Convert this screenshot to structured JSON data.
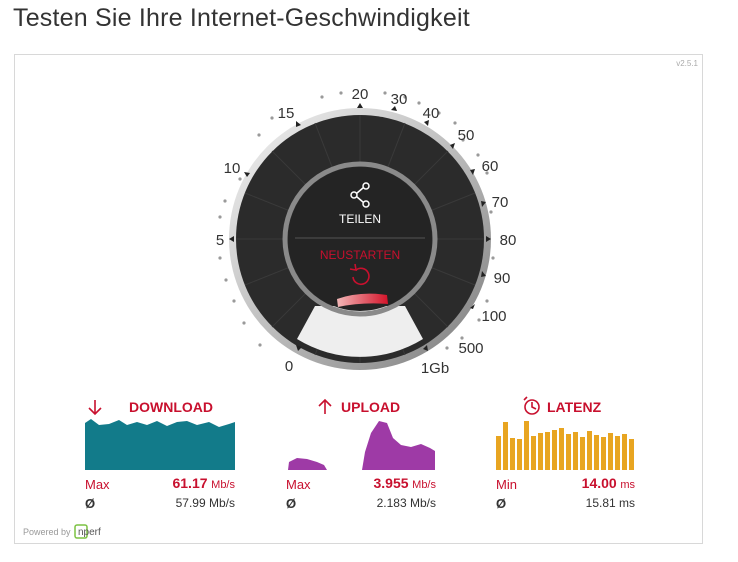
{
  "page": {
    "title": "Testen Sie Ihre Internet-Geschwindigkeit"
  },
  "widget": {
    "version": "v2.5.1"
  },
  "gauge": {
    "scale_labels": [
      "0",
      "5",
      "10",
      "15",
      "20",
      "30",
      "40",
      "50",
      "60",
      "70",
      "80",
      "90",
      "100",
      "500",
      "1Gb"
    ],
    "share_label": "TEILEN",
    "restart_label": "NEUSTARTEN"
  },
  "download": {
    "title": "DOWNLOAD",
    "max_label": "Max",
    "max_value": "61.17",
    "unit": "Mb/s",
    "avg_symbol": "Ø",
    "avg_value": "57.99 Mb/s",
    "color": "#127b8a"
  },
  "upload": {
    "title": "UPLOAD",
    "max_label": "Max",
    "max_value": "3.955",
    "unit": "Mb/s",
    "avg_symbol": "Ø",
    "avg_value": "2.183 Mb/s",
    "color": "#9e3aa6"
  },
  "latency": {
    "title": "LATENZ",
    "min_label": "Min",
    "min_value": "14.00",
    "unit": "ms",
    "avg_symbol": "Ø",
    "avg_value": "15.81 ms",
    "color": "#e8a521"
  },
  "footer": {
    "powered_by": "Powered by",
    "brand": "nperf"
  },
  "colors": {
    "accent": "#c8102e",
    "gauge_dark": "#2b2b2b",
    "gauge_window": "#eeeeee"
  }
}
